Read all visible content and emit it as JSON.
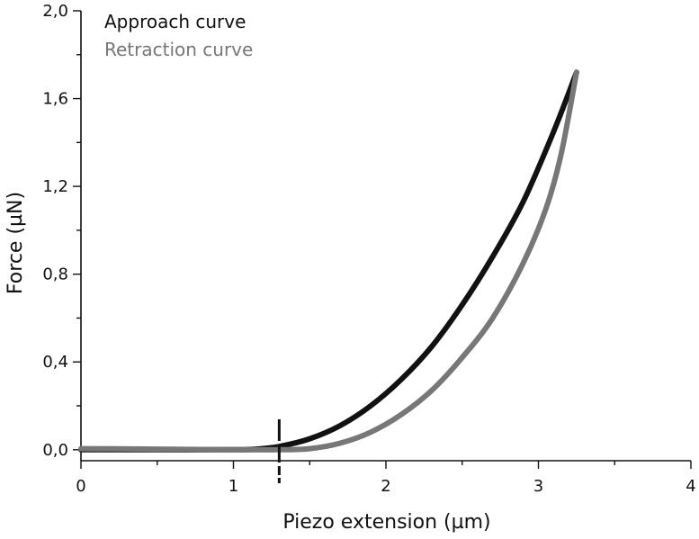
{
  "chart_data": {
    "type": "line",
    "xlabel": "Piezo extension (µm)",
    "ylabel": "Force (µN)",
    "xlim": [
      0,
      4
    ],
    "ylim": [
      -0.05,
      2.0
    ],
    "x_ticks": [
      "0",
      "1",
      "2",
      "3",
      "4"
    ],
    "y_ticks": [
      "0,0",
      "0,4",
      "0,8",
      "1,2",
      "1,6",
      "2,0"
    ],
    "grid": false,
    "legend_position": "top-left",
    "contact_point_marker_x": 1.3,
    "series": [
      {
        "name": "Approach curve",
        "color": "#111111",
        "x": [
          0.0,
          0.5,
          1.0,
          1.15,
          1.3,
          1.5,
          1.7,
          1.9,
          2.1,
          2.3,
          2.5,
          2.7,
          2.9,
          3.1,
          3.25
        ],
        "y": [
          0.0,
          0.0,
          0.0,
          0.003,
          0.015,
          0.05,
          0.11,
          0.2,
          0.32,
          0.47,
          0.66,
          0.88,
          1.13,
          1.45,
          1.72
        ]
      },
      {
        "name": "Retraction curve",
        "color": "#777777",
        "x": [
          0.0,
          0.5,
          1.0,
          1.3,
          1.5,
          1.7,
          1.9,
          2.1,
          2.3,
          2.5,
          2.7,
          2.9,
          3.05,
          3.15,
          3.25
        ],
        "y": [
          0.005,
          0.003,
          0.0,
          0.0,
          0.005,
          0.03,
          0.08,
          0.16,
          0.27,
          0.42,
          0.6,
          0.85,
          1.1,
          1.35,
          1.72
        ]
      }
    ]
  }
}
